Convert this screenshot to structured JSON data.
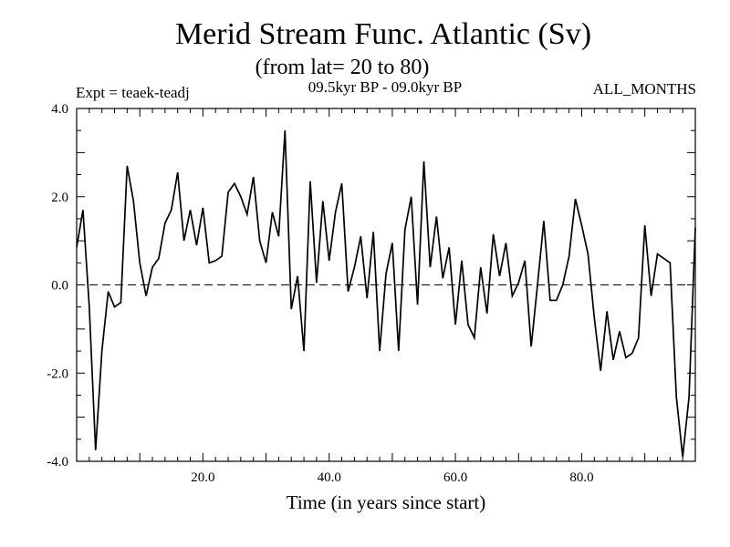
{
  "chart_data": {
    "type": "line",
    "title": "Merid Stream Func. Atlantic (Sv)",
    "subtitle": "(from lat= 20 to 80)",
    "experiment": "Expt = teaek-teadj",
    "period": "09.5kyr BP - 09.0kyr BP",
    "months": "ALL_MONTHS",
    "xlabel": "Time (in years since start)",
    "ylabel": "",
    "xlim": [
      0,
      98
    ],
    "ylim": [
      -4.0,
      4.0
    ],
    "x_ticks": [
      20,
      40,
      60,
      80
    ],
    "x_tick_labels": [
      "20.0",
      "40.0",
      "60.0",
      "80.0"
    ],
    "y_ticks": [
      -4,
      -2,
      0,
      2,
      4
    ],
    "y_tick_labels": [
      "-4.0",
      "-2.0",
      "0.0",
      "2.0",
      "4.0"
    ],
    "zero_line": "dashed",
    "series": [
      {
        "name": "Merid Stream Func.",
        "x": [
          0,
          1,
          2,
          3,
          4,
          5,
          6,
          7,
          8,
          9,
          10,
          11,
          12,
          13,
          14,
          15,
          16,
          17,
          18,
          19,
          20,
          21,
          22,
          23,
          24,
          25,
          26,
          27,
          28,
          29,
          30,
          31,
          32,
          33,
          34,
          35,
          36,
          37,
          38,
          39,
          40,
          41,
          42,
          43,
          44,
          45,
          46,
          47,
          48,
          49,
          50,
          51,
          52,
          53,
          54,
          55,
          56,
          57,
          58,
          59,
          60,
          61,
          62,
          63,
          64,
          65,
          66,
          67,
          68,
          69,
          70,
          71,
          72,
          73,
          74,
          75,
          76,
          77,
          78,
          79,
          80,
          81,
          82,
          83,
          84,
          85,
          86,
          87,
          88,
          89,
          90,
          91,
          92,
          93,
          94,
          95,
          96,
          97,
          98
        ],
        "values": [
          0.85,
          1.7,
          -0.5,
          -3.75,
          -1.5,
          -0.15,
          -0.5,
          -0.4,
          2.7,
          1.9,
          0.5,
          -0.25,
          0.4,
          0.6,
          1.4,
          1.7,
          2.55,
          1.0,
          1.7,
          0.9,
          1.75,
          0.5,
          0.55,
          0.65,
          2.1,
          2.3,
          2.0,
          1.6,
          2.45,
          1.0,
          0.5,
          1.65,
          1.1,
          3.5,
          -0.55,
          0.2,
          -1.5,
          2.35,
          0.05,
          1.9,
          0.55,
          1.65,
          2.3,
          -0.15,
          0.4,
          1.1,
          -0.3,
          1.2,
          -1.5,
          0.25,
          0.95,
          -1.5,
          1.25,
          2.0,
          -0.45,
          2.8,
          0.4,
          1.55,
          0.15,
          0.85,
          -0.9,
          0.55,
          -0.9,
          -1.2,
          0.4,
          -0.65,
          1.15,
          0.2,
          0.95,
          -0.25,
          0.05,
          0.55,
          -1.4,
          0.0,
          1.45,
          -0.35,
          -0.35,
          0.0,
          0.65,
          1.95,
          1.35,
          0.7,
          -0.75,
          -1.95,
          -0.6,
          -1.7,
          -1.05,
          -1.65,
          -1.55,
          -1.2,
          1.35,
          -0.25,
          0.7,
          0.6,
          0.5,
          -2.55,
          -3.9,
          -2.55,
          1.3
        ]
      }
    ]
  },
  "colors": {
    "line": "#000000",
    "axis": "#000000",
    "background": "#ffffff"
  }
}
